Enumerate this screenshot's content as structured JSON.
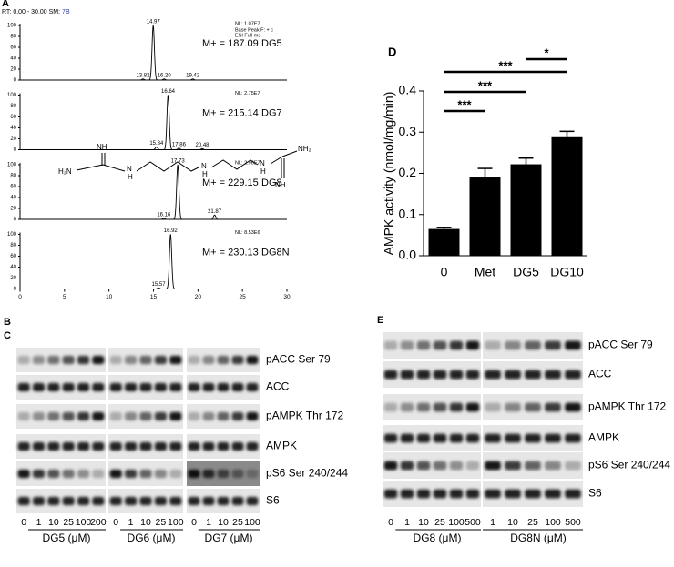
{
  "panel_labels": {
    "a": "A",
    "b": "B",
    "c": "C",
    "d": "D",
    "e": "E"
  },
  "chart_data": [
    {
      "type": "chromatogram",
      "header_range": "RT: 0.00 - 30.00",
      "header_sm": "SM:",
      "header_sm_value": "7B",
      "xlim": [
        0,
        30
      ],
      "xticks": [
        0,
        5,
        10,
        15,
        20,
        25,
        30
      ],
      "ylim": [
        0,
        100
      ],
      "yticks": [
        0,
        20,
        40,
        60,
        80,
        100
      ],
      "traces": [
        {
          "nl": "NL: 1.07E7",
          "notes": [
            "Base Peak F: + c",
            "ESI Full ms"
          ],
          "mass": "M+ = 187.09",
          "name": "DG5",
          "peaks": [
            {
              "x": 14.97,
              "value": 100,
              "label": "14.97"
            },
            {
              "x": 13.82,
              "value": 2,
              "label": "13.82"
            },
            {
              "x": 16.2,
              "value": 2,
              "label": "16.20"
            },
            {
              "x": 19.42,
              "value": 2,
              "label": "19.42"
            }
          ]
        },
        {
          "nl": "NL: 2.75E7",
          "notes": [],
          "mass": "M+ = 215.14",
          "name": "DG7",
          "peaks": [
            {
              "x": 16.64,
              "value": 100,
              "label": "16.64"
            },
            {
              "x": 15.34,
              "value": 5,
              "label": "15.34"
            },
            {
              "x": 17.86,
              "value": 3,
              "label": "17.86"
            },
            {
              "x": 20.48,
              "value": 2,
              "label": "20.48"
            }
          ]
        },
        {
          "nl": "NL: 2.96E7",
          "notes": [],
          "mass": "M+ = 229.15",
          "name": "DG8",
          "peaks": [
            {
              "x": 17.73,
              "value": 100,
              "label": "17.73"
            },
            {
              "x": 16.16,
              "value": 2,
              "label": "16.16"
            },
            {
              "x": 21.87,
              "value": 8,
              "label": "21.87"
            }
          ]
        },
        {
          "nl": "NL: 8.53E6",
          "notes": [],
          "mass": "M+ = 230.13",
          "name": "DG8N",
          "peaks": [
            {
              "x": 16.92,
              "value": 100,
              "label": "16.92"
            },
            {
              "x": 15.57,
              "value": 2,
              "label": "15.57"
            }
          ]
        }
      ]
    },
    {
      "type": "bar",
      "y_label": "AMPK activity (nmol/mg/min)",
      "categories": [
        "0",
        "Met",
        "DG5",
        "DG10"
      ],
      "values": [
        0.065,
        0.19,
        0.222,
        0.29
      ],
      "errors": [
        0.004,
        0.022,
        0.015,
        0.012
      ],
      "color": "#000000",
      "ylim": [
        0,
        0.4
      ],
      "yticks": [
        {
          "value": 0,
          "label": "0.0"
        },
        0.1,
        0.2,
        0.3,
        0.4
      ],
      "significance": [
        {
          "from": 0,
          "to": 1,
          "label": "***"
        },
        {
          "from": 0,
          "to": 2,
          "label": "***"
        },
        {
          "from": 0,
          "to": 3,
          "label": "***"
        },
        {
          "from": 2,
          "to": 3,
          "label": "*"
        }
      ]
    }
  ],
  "structure": {
    "labels": [
      "NH",
      "H₂N",
      "N",
      "H",
      "N",
      "H",
      "N",
      "H",
      "NH₂",
      "NH"
    ]
  },
  "blots_c": {
    "rows": [
      "pACC Ser 79",
      "ACC",
      "pAMPK Thr 172",
      "AMPK",
      "pS6 Ser 240/244",
      "S6"
    ],
    "groups": [
      {
        "name": "DG5 (μM)",
        "lanes": [
          "0",
          "1",
          "10",
          "25",
          "100",
          "200"
        ]
      },
      {
        "name": "DG6 (μM)",
        "lanes": [
          "0",
          "1",
          "10",
          "25",
          "100"
        ]
      },
      {
        "name": "DG7 (μM)",
        "lanes": [
          "0",
          "1",
          "10",
          "25",
          "100"
        ]
      }
    ]
  },
  "blots_e": {
    "rows": [
      "pACC Ser 79",
      "ACC",
      "pAMPK Thr 172",
      "AMPK",
      "pS6 Ser 240/244",
      "S6"
    ],
    "groups": [
      {
        "name": "DG8 (μM)",
        "lanes": [
          "0",
          "1",
          "10",
          "25",
          "100",
          "500"
        ]
      },
      {
        "name": "DG8N (μM)",
        "lanes": [
          "1",
          "10",
          "25",
          "100",
          "500"
        ]
      }
    ]
  }
}
